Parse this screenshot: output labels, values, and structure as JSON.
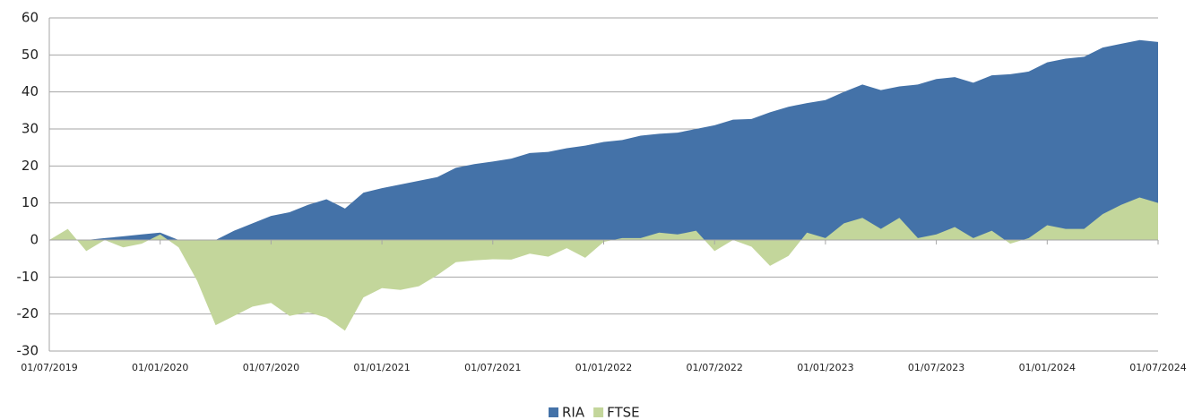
{
  "chart_data": {
    "type": "area",
    "categories": [
      "01/07/2019",
      null,
      null,
      null,
      null,
      null,
      "01/01/2020",
      null,
      null,
      null,
      null,
      null,
      "01/07/2020",
      null,
      null,
      null,
      null,
      null,
      "01/01/2021",
      null,
      null,
      null,
      null,
      null,
      "01/07/2021",
      null,
      null,
      null,
      null,
      null,
      "01/01/2022",
      null,
      null,
      null,
      null,
      null,
      "01/07/2022",
      null,
      null,
      null,
      null,
      null,
      "01/01/2023",
      null,
      null,
      null,
      null,
      null,
      "01/07/2023",
      null,
      null,
      null,
      null,
      null,
      "01/01/2024",
      null,
      null,
      null,
      null,
      null,
      "01/07/2024"
    ],
    "series": [
      {
        "name": "RIA",
        "color": "#4472a8",
        "values": [
          0,
          0,
          0,
          0.5,
          1,
          1.5,
          2,
          0,
          0,
          0,
          2.5,
          4.5,
          6.5,
          7.5,
          9.5,
          11,
          8.5,
          12.8,
          14,
          15,
          16,
          17,
          19.5,
          20.5,
          21.2,
          22,
          23.5,
          23.8,
          24.8,
          25.5,
          26.5,
          27,
          28.2,
          28.7,
          29,
          30,
          31,
          32.5,
          32.7,
          34.5,
          36,
          37,
          37.8,
          40,
          42,
          40.5,
          41.5,
          42,
          43.5,
          44,
          42.5,
          44.5,
          44.8,
          45.5,
          48,
          49,
          49.5,
          52,
          53,
          54,
          53.5
        ]
      },
      {
        "name": "FTSE",
        "color": "#c3d69b",
        "values": [
          0,
          3,
          -3,
          0,
          -2,
          -1,
          1.5,
          -2,
          -11,
          -23,
          -20.5,
          -18,
          -17,
          -20.5,
          -19.5,
          -21,
          -24.5,
          -15.5,
          -13,
          -13.5,
          -12.5,
          -9.5,
          -6,
          -5.5,
          -5.2,
          -5.3,
          -3.7,
          -4.5,
          -2.2,
          -4.8,
          -0.5,
          0.5,
          0.5,
          2,
          1.5,
          2.5,
          -3,
          0,
          -1.8,
          -7,
          -4.3,
          2,
          0.5,
          4.5,
          6,
          3,
          6,
          0.5,
          1.5,
          3.5,
          0.5,
          2.5,
          -1,
          0.5,
          4,
          3,
          3,
          7,
          9.5,
          11.5,
          10
        ]
      }
    ],
    "ylim": [
      -30,
      60
    ],
    "yticks": [
      -30,
      -20,
      -10,
      0,
      10,
      20,
      30,
      40,
      50,
      60
    ],
    "grid": true,
    "legend": "bottom"
  }
}
